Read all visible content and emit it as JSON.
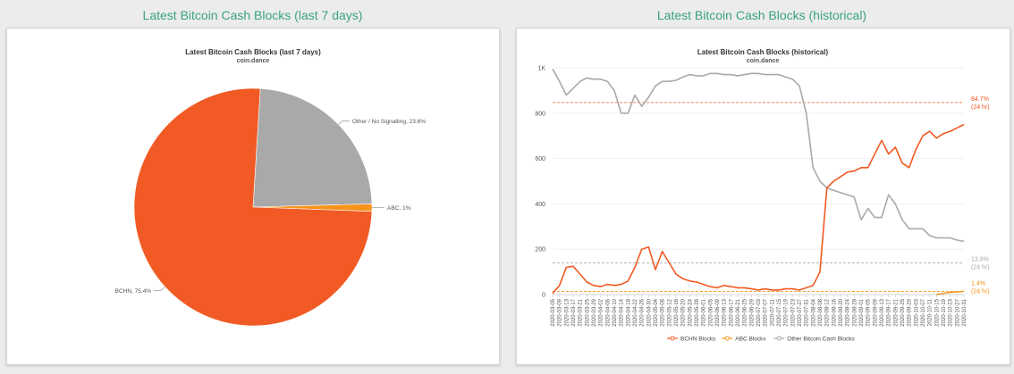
{
  "headings": {
    "left": "Latest Bitcoin Cash Blocks (last 7 days)",
    "right": "Latest Bitcoin Cash Blocks (historical)"
  },
  "colors": {
    "bchn": "#f15a24",
    "abc": "#f7931a",
    "other": "#a9a9a9",
    "heading": "#3aa37f"
  },
  "chart_data": [
    {
      "type": "pie",
      "title": "Latest Bitcoin Cash Blocks (last 7 days)",
      "subtitle": "coin.dance",
      "slices": [
        {
          "name": "BCHN",
          "value": 75.4,
          "label": "BCHN, 75.4%"
        },
        {
          "name": "ABC",
          "value": 1,
          "label": "ABC, 1%"
        },
        {
          "name": "Other / No Signalling",
          "value": 23.6,
          "label": "Other / No Signalling, 23.6%"
        }
      ]
    },
    {
      "type": "line",
      "title": "Latest Bitcoin Cash Blocks (historical)",
      "subtitle": "coin.dance",
      "ylim": [
        0,
        1000
      ],
      "yticks": [
        "0",
        "200",
        "400",
        "600",
        "800",
        "1K"
      ],
      "categories": [
        "2020-03-05",
        "2020-03-09",
        "2020-03-13",
        "2020-03-17",
        "2020-03-21",
        "2020-03-25",
        "2020-03-29",
        "2020-04-02",
        "2020-04-06",
        "2020-04-10",
        "2020-04-14",
        "2020-04-18",
        "2020-04-22",
        "2020-04-26",
        "2020-04-30",
        "2020-05-04",
        "2020-05-08",
        "2020-05-12",
        "2020-05-16",
        "2020-05-20",
        "2020-05-24",
        "2020-05-28",
        "2020-06-01",
        "2020-06-05",
        "2020-06-09",
        "2020-06-13",
        "2020-06-17",
        "2020-06-21",
        "2020-06-25",
        "2020-06-29",
        "2020-07-03",
        "2020-07-07",
        "2020-07-11",
        "2020-07-15",
        "2020-07-19",
        "2020-07-23",
        "2020-07-27",
        "2020-07-31",
        "2020-08-04",
        "2020-08-08",
        "2020-08-12",
        "2020-08-16",
        "2020-08-20",
        "2020-08-24",
        "2020-08-28",
        "2020-09-01",
        "2020-09-05",
        "2020-09-09",
        "2020-09-13",
        "2020-09-17",
        "2020-09-21",
        "2020-09-25",
        "2020-09-29",
        "2020-10-03",
        "2020-10-07",
        "2020-10-11",
        "2020-10-15",
        "2020-10-19",
        "2020-10-23",
        "2020-10-27",
        "2020-10-31"
      ],
      "series": [
        {
          "name": "BCHN Blocks",
          "key": "bchn",
          "values": [
            5,
            40,
            120,
            125,
            90,
            55,
            40,
            35,
            45,
            40,
            45,
            60,
            120,
            200,
            210,
            110,
            190,
            140,
            90,
            70,
            60,
            55,
            45,
            35,
            30,
            40,
            35,
            30,
            30,
            25,
            20,
            25,
            20,
            20,
            25,
            25,
            20,
            30,
            40,
            100,
            470,
            500,
            520,
            540,
            545,
            560,
            560,
            620,
            680,
            620,
            650,
            580,
            560,
            640,
            700,
            720,
            690,
            710,
            720,
            735,
            750
          ]
        },
        {
          "name": "ABC Blocks",
          "key": "abc",
          "values": [
            0,
            0,
            0,
            0,
            0,
            0,
            0,
            0,
            0,
            0,
            0,
            0,
            0,
            0,
            0,
            0,
            0,
            0,
            0,
            0,
            0,
            0,
            0,
            0,
            0,
            0,
            0,
            0,
            0,
            0,
            0,
            0,
            0,
            0,
            0,
            0,
            0,
            0,
            0,
            0,
            0,
            0,
            0,
            0,
            0,
            0,
            0,
            0,
            0,
            0,
            0,
            0,
            0,
            0,
            0,
            0,
            0,
            5,
            10,
            12,
            14
          ]
        },
        {
          "name": "Other Bitcoin Cash Blocks",
          "key": "other",
          "values": [
            995,
            940,
            880,
            910,
            940,
            955,
            950,
            950,
            940,
            900,
            800,
            800,
            880,
            830,
            870,
            920,
            940,
            940,
            945,
            960,
            970,
            965,
            965,
            975,
            975,
            970,
            970,
            965,
            970,
            975,
            975,
            970,
            970,
            970,
            960,
            950,
            920,
            800,
            560,
            500,
            470,
            460,
            450,
            440,
            430,
            330,
            380,
            340,
            340,
            440,
            400,
            330,
            290,
            290,
            290,
            260,
            250,
            250,
            250,
            240,
            235
          ]
        }
      ],
      "annotations": [
        {
          "key": "bchn",
          "value": 847,
          "label": "84.7%",
          "sub": "(24 hr)"
        },
        {
          "key": "other",
          "value": 139,
          "label": "13.9%",
          "sub": "(24 hr)"
        },
        {
          "key": "abc",
          "value": 14,
          "label": "1.4%",
          "sub": "(24 hr)"
        }
      ]
    }
  ]
}
